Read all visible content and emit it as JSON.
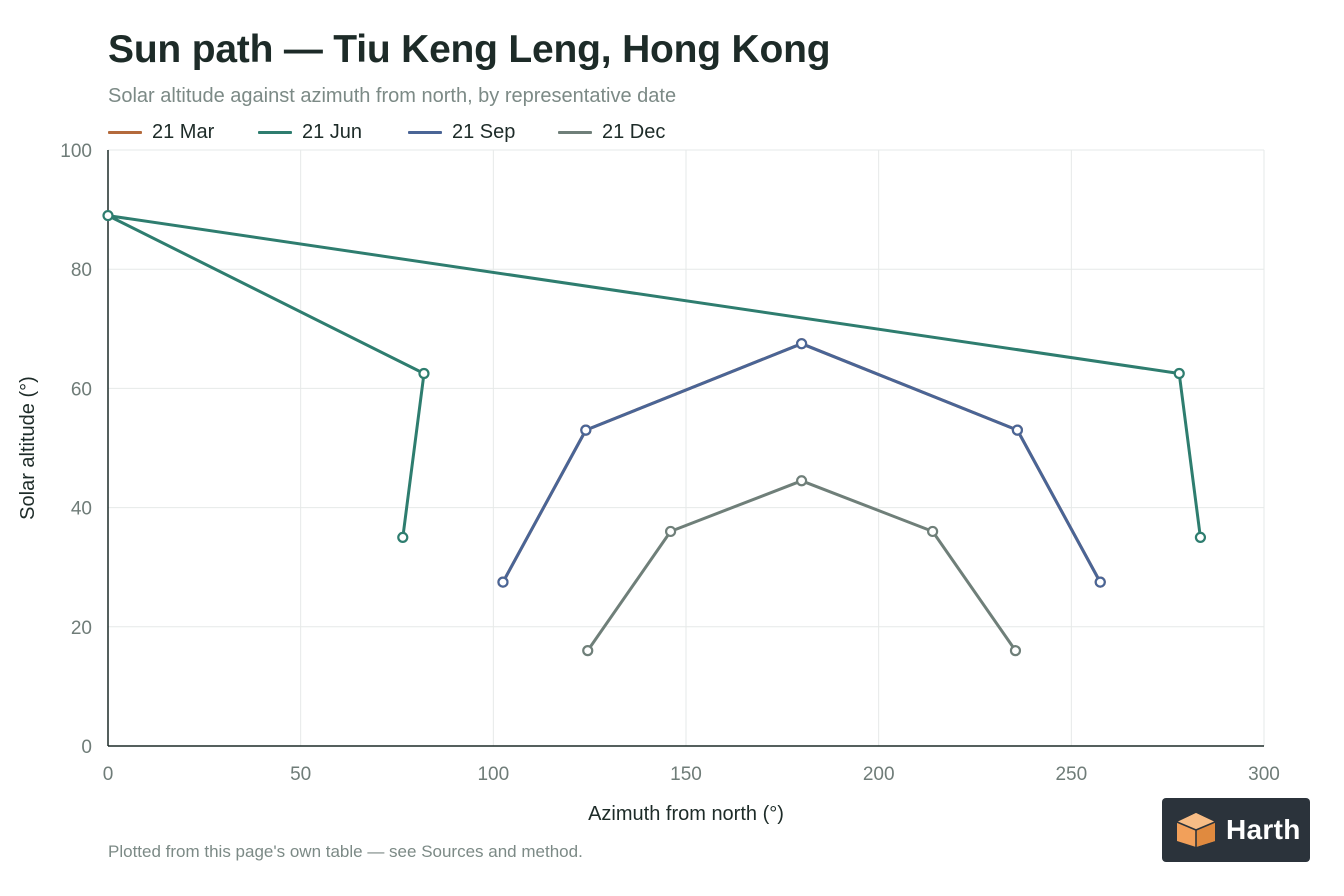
{
  "header": {
    "title": "Sun path — Tiu Keng Leng, Hong Kong",
    "subtitle": "Solar altitude against azimuth from north, by representative date"
  },
  "footer": {
    "note": "Plotted from this page's own table — see Sources and method.",
    "logo_text": "Harth",
    "logo_icon": "orange-cube-icon"
  },
  "colors": {
    "mar": "#b46a3c",
    "jun": "#2e7d6f",
    "sep": "#4a6596",
    "dec": "#6f7f79",
    "grid": "#e6e9e8",
    "axis": "#1d2b28",
    "tick_label": "#6f7c78",
    "logo_bg": "#2b333b",
    "logo_accent": "#f2a05a"
  },
  "chart_data": {
    "type": "line",
    "xlabel": "Azimuth from north (°)",
    "ylabel": "Solar altitude (°)",
    "xlim": [
      0,
      300
    ],
    "ylim": [
      0,
      100
    ],
    "x_ticks": [
      0,
      50,
      100,
      150,
      200,
      250,
      300
    ],
    "y_ticks": [
      0,
      20,
      40,
      60,
      80,
      100
    ],
    "grid": true,
    "legend_position": "top-left",
    "series": [
      {
        "name": "21 Mar",
        "color": "#b46a3c",
        "points": [
          [
            102.5,
            27.5
          ],
          [
            124,
            53
          ],
          [
            180,
            67.5
          ],
          [
            236,
            53
          ],
          [
            257.5,
            27.5
          ]
        ]
      },
      {
        "name": "21 Jun",
        "color": "#2e7d6f",
        "points": [
          [
            76.5,
            35
          ],
          [
            82,
            62.5
          ],
          [
            0,
            89
          ],
          [
            278,
            62.5
          ],
          [
            283.5,
            35
          ]
        ]
      },
      {
        "name": "21 Sep",
        "color": "#4a6596",
        "points": [
          [
            102.5,
            27.5
          ],
          [
            124,
            53
          ],
          [
            180,
            67.5
          ],
          [
            236,
            53
          ],
          [
            257.5,
            27.5
          ]
        ]
      },
      {
        "name": "21 Dec",
        "color": "#6f7f79",
        "points": [
          [
            124.5,
            16
          ],
          [
            146,
            36
          ],
          [
            180,
            44.5
          ],
          [
            214,
            36
          ],
          [
            235.5,
            16
          ]
        ]
      }
    ]
  }
}
